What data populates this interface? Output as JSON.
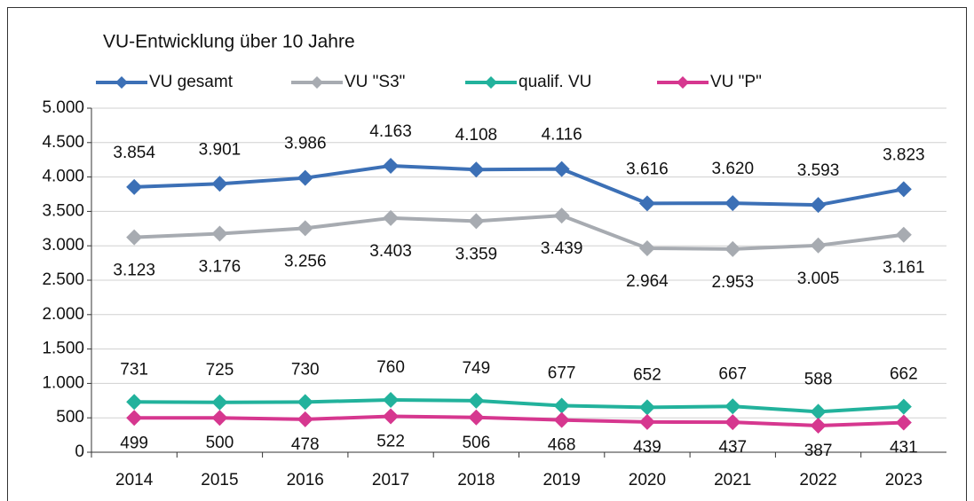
{
  "chart_data": {
    "type": "line",
    "title": "VU-Entwicklung über 10 Jahre",
    "categories": [
      "2014",
      "2015",
      "2016",
      "2017",
      "2018",
      "2019",
      "2020",
      "2021",
      "2022",
      "2023"
    ],
    "series": [
      {
        "name": "VU gesamt",
        "color": "#3c70b6",
        "values": [
          3854,
          3901,
          3986,
          4163,
          4108,
          4116,
          3616,
          3620,
          3593,
          3823
        ],
        "value_labels": [
          "3.854",
          "3.901",
          "3.986",
          "4.163",
          "4.108",
          "4.116",
          "3.616",
          "3.620",
          "3.593",
          "3.823"
        ]
      },
      {
        "name": "VU \"S3\"",
        "color": "#a7abb1",
        "values": [
          3123,
          3176,
          3256,
          3403,
          3359,
          3439,
          2964,
          2953,
          3005,
          3161
        ],
        "value_labels": [
          "3.123",
          "3.176",
          "3.256",
          "3.403",
          "3.359",
          "3.439",
          "2.964",
          "2.953",
          "3.005",
          "3.161"
        ]
      },
      {
        "name": "qualif. VU",
        "color": "#22b29c",
        "values": [
          731,
          725,
          730,
          760,
          749,
          677,
          652,
          667,
          588,
          662
        ]
      },
      {
        "name": "VU \"P\"",
        "color": "#d6378f",
        "values": [
          499,
          500,
          478,
          522,
          506,
          468,
          439,
          437,
          387,
          431
        ]
      }
    ],
    "ylim": [
      0,
      5000
    ],
    "yticks": [
      0,
      500,
      {
        "value": 1000,
        "label": "1.000"
      },
      {
        "value": 1500,
        "label": "1.500"
      },
      {
        "value": 2000,
        "label": "2.000"
      },
      {
        "value": 2500,
        "label": "2.500"
      },
      {
        "value": 3000,
        "label": "3.000"
      },
      {
        "value": 3500,
        "label": "3.500"
      },
      {
        "value": 4000,
        "label": "4.000"
      },
      {
        "value": 4500,
        "label": "4.500"
      },
      {
        "value": 5000,
        "label": "5.000"
      }
    ],
    "grid": true
  }
}
